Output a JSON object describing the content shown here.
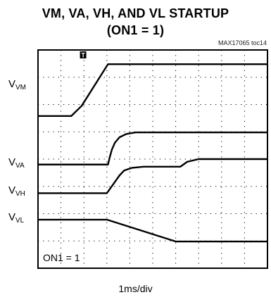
{
  "chart_data": {
    "type": "line",
    "title_line1": "VM, VA, VH, AND VL STARTUP",
    "title_line2": "(ON1 = 1)",
    "figure_id": "MAX17065 toc14",
    "xlabel": "1ms/div",
    "annotation": "ON1 = 1",
    "trigger_marker": "T",
    "xlim": [
      0,
      10
    ],
    "ylim": [
      0,
      8
    ],
    "grid": true,
    "series": [
      {
        "label_main": "V",
        "label_sub": "VM",
        "label_y": 6.65,
        "color": "#000000",
        "x": [
          0,
          1.45,
          1.9,
          3.05,
          10
        ],
        "y": [
          5.58,
          5.58,
          5.95,
          7.48,
          7.48
        ]
      },
      {
        "label_main": "V",
        "label_sub": "VA",
        "label_y": 3.8,
        "color": "#000000",
        "x": [
          0,
          3.05,
          3.12,
          3.22,
          3.35,
          3.55,
          3.85,
          4.25,
          10
        ],
        "y": [
          3.8,
          3.8,
          4.05,
          4.35,
          4.6,
          4.8,
          4.92,
          4.98,
          4.98
        ]
      },
      {
        "label_main": "V",
        "label_sub": "VH",
        "label_y": 2.75,
        "color": "#000000",
        "x": [
          0,
          3.0,
          3.55,
          3.75,
          4.1,
          4.6,
          5.5,
          6.2,
          6.5,
          7.0,
          10
        ],
        "y": [
          2.75,
          2.75,
          3.4,
          3.58,
          3.68,
          3.72,
          3.72,
          3.72,
          3.9,
          4.0,
          4.0
        ]
      },
      {
        "label_main": "V",
        "label_sub": "VL",
        "label_y": 1.78,
        "color": "#000000",
        "x": [
          0,
          3.0,
          6.0,
          10
        ],
        "y": [
          1.78,
          1.78,
          0.98,
          0.98
        ]
      }
    ]
  }
}
